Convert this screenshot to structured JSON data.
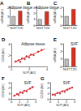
{
  "chart_data": [
    {
      "type": "bar",
      "title": "Adipose tissue",
      "annotations": [
        "A"
      ],
      "categories": [
        "NGT",
        "T2D"
      ],
      "values": [
        1,
        1.6
      ],
      "colors": [
        "#bdbdbd",
        "#d7301f"
      ],
      "ylabel": "mRNA (AU)",
      "ylim": [
        0,
        2
      ],
      "yticks": [
        0,
        1,
        2
      ],
      "grid": false
    },
    {
      "type": "bar",
      "title": "Adipose tissue",
      "annotations": [
        "B"
      ],
      "categories": [
        "NGT",
        "T2D"
      ],
      "values": [
        1,
        2.3
      ],
      "colors": [
        "#bdbdbd",
        "#d7301f"
      ],
      "ylabel": "mRNA (AU)",
      "ylim": [
        0,
        3
      ],
      "yticks": [
        0,
        1,
        2,
        3
      ],
      "grid": false
    },
    {
      "type": "bar",
      "annotations": [
        "C"
      ],
      "categories": [
        "NGT",
        "T2D"
      ],
      "values": [
        1,
        1.8
      ],
      "colors": [
        "#bdbdbd",
        "#d7301f"
      ],
      "ylabel": "mRNA (AU)",
      "ylim": [
        0,
        2
      ],
      "yticks": [
        0,
        1,
        2
      ],
      "grid": false
    },
    {
      "type": "scatter",
      "title": "Adipose tissue",
      "annotations": [
        "D"
      ],
      "x": [
        0.5,
        0.8,
        1.0,
        1.2,
        1.5,
        1.7,
        2.0,
        2.2,
        2.5,
        3.0,
        3.4
      ],
      "values": [
        0.9,
        1.1,
        0.8,
        1.4,
        1.3,
        1.8,
        1.6,
        2.1,
        2.0,
        2.6,
        2.9
      ],
      "color": "#b2182b",
      "marker": "circle",
      "trend": {
        "x": [
          0.3,
          3.8
        ],
        "values": [
          0.7,
          3.1
        ],
        "color": "#e31a1c"
      },
      "xlabel": "SLPI (AU)",
      "ylabel": "CD68 (AU)",
      "xlim": [
        0,
        4
      ],
      "xticks": [
        0,
        2,
        4
      ],
      "ylim": [
        0,
        4
      ],
      "yticks": [
        0,
        2,
        4
      ],
      "grid": false
    },
    {
      "type": "bar",
      "title": "SVF",
      "annotations": [
        "E"
      ],
      "categories": [
        "NGT",
        "T2D"
      ],
      "values": [
        1,
        2.5
      ],
      "colors": [
        "#bdbdbd",
        "#d7301f"
      ],
      "ylabel": "mRNA (AU)",
      "ylim": [
        0,
        3
      ],
      "yticks": [
        0,
        1,
        2,
        3
      ],
      "grid": false
    },
    {
      "type": "scatter",
      "title": "SVF",
      "annotations": [
        "F"
      ],
      "x": [
        0.4,
        0.7,
        0.9,
        1.1,
        1.4,
        1.6,
        1.9,
        2.3,
        2.6
      ],
      "values": [
        0.6,
        0.9,
        0.7,
        1.2,
        1.1,
        1.5,
        1.4,
        1.9,
        2.2
      ],
      "color": "#b2182b",
      "marker": "circle",
      "trend": {
        "x": [
          0.2,
          2.8
        ],
        "values": [
          0.5,
          2.2
        ],
        "color": "#e31a1c"
      },
      "xlabel": "SLPI (AU)",
      "ylabel": "CD68 (AU)",
      "xlim": [
        0,
        3
      ],
      "xticks": [
        0,
        1,
        2,
        3
      ],
      "ylim": [
        0,
        3
      ],
      "yticks": [
        0,
        1,
        2,
        3
      ],
      "grid": false
    },
    {
      "type": "scatter",
      "title": "SVF",
      "annotations": [
        "G"
      ],
      "x": [
        0.3,
        0.6,
        0.9,
        1.2,
        1.5,
        1.8,
        2.1,
        2.4,
        2.7
      ],
      "values": [
        0.8,
        0.7,
        1.1,
        1.0,
        1.4,
        1.3,
        1.7,
        1.9,
        2.1
      ],
      "color": "#b2182b",
      "marker": "circle",
      "trend": {
        "x": [
          0.2,
          2.8
        ],
        "values": [
          0.7,
          2.1
        ],
        "color": "#e31a1c"
      },
      "xlabel": "SLPI (AU)",
      "ylabel": "CD206 (AU)",
      "xlim": [
        0,
        3
      ],
      "xticks": [
        0,
        1,
        2,
        3
      ],
      "ylim": [
        0,
        3
      ],
      "yticks": [
        0,
        1,
        2,
        3
      ],
      "grid": false
    }
  ]
}
